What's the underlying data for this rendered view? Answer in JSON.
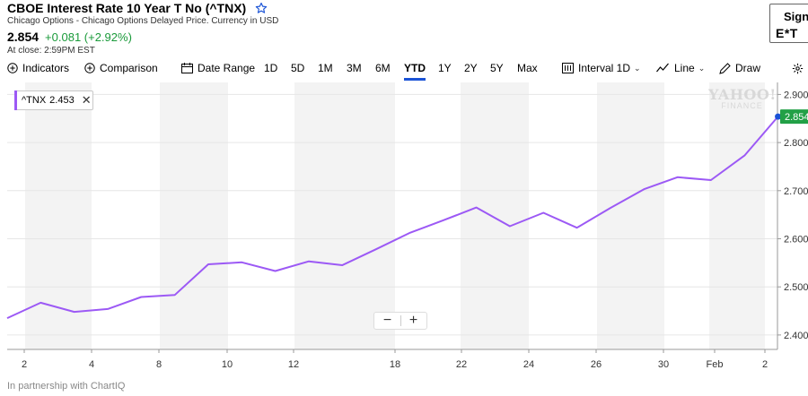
{
  "header": {
    "title": "CBOE Interest Rate 10 Year T No (^TNX)",
    "subtitle": "Chicago Options - Chicago Options Delayed Price. Currency in USD",
    "price": "2.854",
    "change": "+0.081 (+2.92%)",
    "close_time": "At close: 2:59PM EST",
    "star_icon": "star-outline-icon",
    "change_color": "#1a9a3a"
  },
  "sign": {
    "label": "Sign",
    "brand": "E*T"
  },
  "toolbar": {
    "indicators": "Indicators",
    "comparison": "Comparison",
    "date_range": "Date Range",
    "ranges": [
      "1D",
      "5D",
      "1M",
      "3M",
      "6M",
      "YTD",
      "1Y",
      "2Y",
      "5Y",
      "Max"
    ],
    "active_range": "YTD",
    "interval": "Interval 1D",
    "chart_type": "Line",
    "draw": "Draw"
  },
  "legend": {
    "symbol": "^TNX",
    "value": "2.453",
    "close": "✕"
  },
  "zoom": {
    "minus": "−",
    "plus": "+"
  },
  "watermark": {
    "big": "YAHOO!",
    "small": "FINANCE"
  },
  "last_price_tag": "2.854",
  "footer": "In partnership with ChartIQ",
  "accent": "#1a53d6",
  "line_color": "#9c59f5",
  "tag_color": "#22a046",
  "chart_data": {
    "type": "line",
    "title": "",
    "ylim": [
      2.37,
      2.925
    ],
    "y_ticks": [
      "2.400",
      "2.500",
      "2.600",
      "2.700",
      "2.800",
      "2.900"
    ],
    "x_ticks": [
      "2",
      "4",
      "8",
      "10",
      "12",
      "18",
      "22",
      "24",
      "26",
      "30",
      "Feb",
      "2"
    ],
    "grid": true,
    "series": [
      {
        "name": "^TNX",
        "x": [
          "Dec 31",
          "Jan 2",
          "Jan 3",
          "Jan 4",
          "Jan 7",
          "Jan 8",
          "Jan 9",
          "Jan 10",
          "Jan 11",
          "Jan 14",
          "Jan 15",
          "Jan 16",
          "Jan 17",
          "Jan 18",
          "Jan 22",
          "Jan 23",
          "Jan 24",
          "Jan 25",
          "Jan 28",
          "Jan 29",
          "Jan 30",
          "Jan 31",
          "Feb 1",
          "Feb 2"
        ],
        "values": [
          2.435,
          2.467,
          2.448,
          2.454,
          2.479,
          2.483,
          2.547,
          2.551,
          2.533,
          2.553,
          2.545,
          2.578,
          2.612,
          2.638,
          2.665,
          2.626,
          2.654,
          2.623,
          2.664,
          2.703,
          2.728,
          2.722,
          2.773,
          2.854
        ]
      }
    ]
  }
}
